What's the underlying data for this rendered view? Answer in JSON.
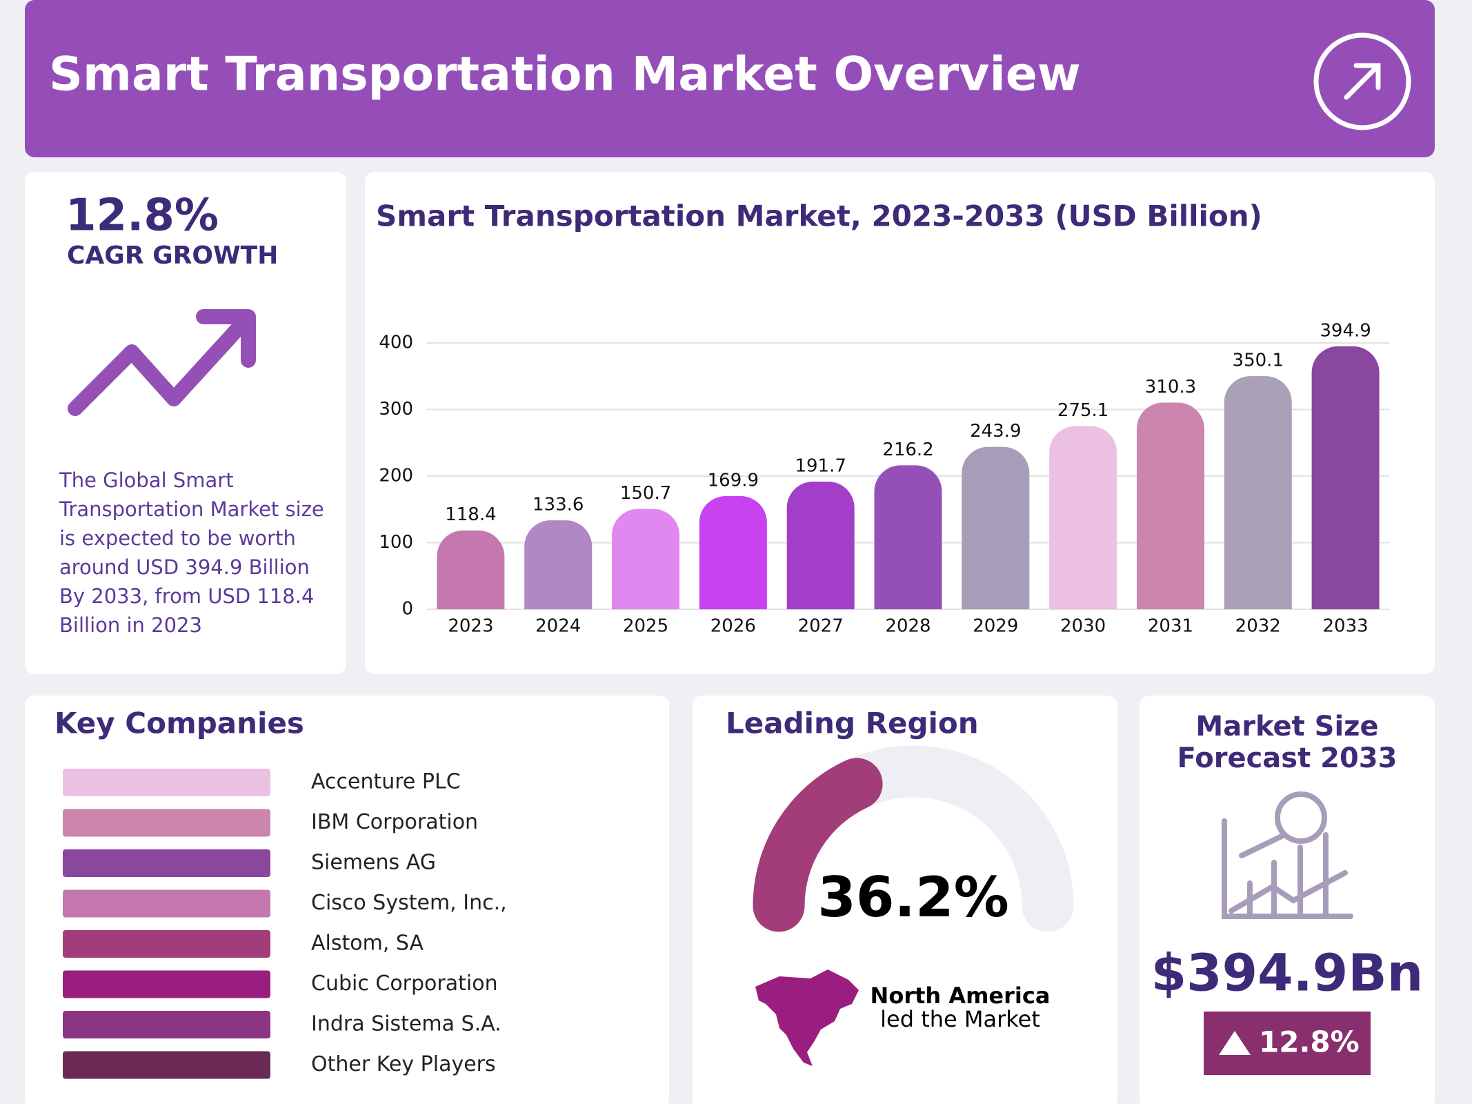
{
  "header": {
    "title": "Smart Transportation Market Overview"
  },
  "cagr": {
    "value": "12.8%",
    "label": "CAGR GROWTH",
    "description": "The Global Smart Transportation Market size is expected to be worth around USD 394.9 Billion By 2033, from USD 118.4 Billion in 2023"
  },
  "chart_data": {
    "type": "bar",
    "title": "Smart Transportation Market, 2023-2033 (USD Billion)",
    "categories": [
      "2023",
      "2024",
      "2025",
      "2026",
      "2027",
      "2028",
      "2029",
      "2030",
      "2031",
      "2032",
      "2033"
    ],
    "values": [
      118.4,
      133.6,
      150.7,
      169.9,
      191.7,
      216.2,
      243.9,
      275.1,
      310.3,
      350.1,
      394.9
    ],
    "colors": [
      "#c478ad",
      "#b088c4",
      "#e088f0",
      "#c843f0",
      "#a23ec8",
      "#9550b8",
      "#a89db8",
      "#ecc0e2",
      "#cc85ad",
      "#aaa0b8",
      "#8a479e"
    ],
    "ylim": [
      0,
      400
    ],
    "yticks": [
      0,
      100,
      200,
      300,
      400
    ],
    "grid": true
  },
  "key_companies": {
    "title": "Key Companies",
    "items": [
      {
        "name": "Accenture PLC",
        "color": "#ecc0e2"
      },
      {
        "name": "IBM Corporation",
        "color": "#cc85ad"
      },
      {
        "name": "Siemens AG",
        "color": "#8a479e"
      },
      {
        "name": "Cisco System, Inc.,",
        "color": "#c478ad"
      },
      {
        "name": "Alstom, SA",
        "color": "#a33d7a"
      },
      {
        "name": "Cubic Corporation",
        "color": "#9a1e80"
      },
      {
        "name": "Indra Sistema S.A.",
        "color": "#8d3585"
      },
      {
        "name": "Other Key Players",
        "color": "#6b2a55"
      }
    ]
  },
  "leading_region": {
    "title": "Leading Region",
    "value": 36.2,
    "value_label": "36.2%",
    "color": "#a33d7a",
    "region": "North America",
    "note": "led the Market"
  },
  "market_size": {
    "title": "Market Size Forecast 2033",
    "value": "$394.9Bn",
    "growth": "12.8%"
  }
}
